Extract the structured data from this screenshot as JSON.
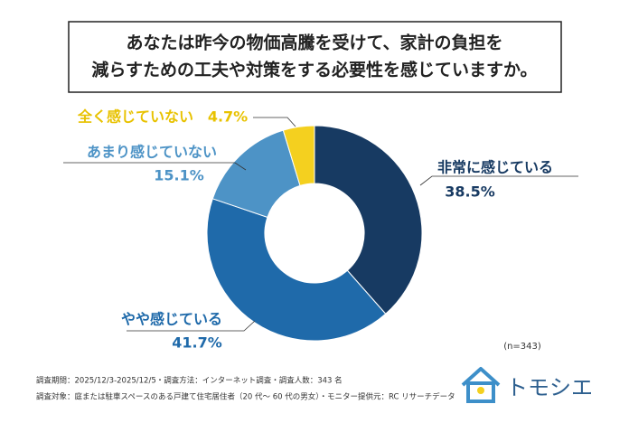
{
  "chart_data": {
    "type": "pie",
    "title": [
      "あなたは昨今の物価高騰を受けて、家計の負担を",
      "減らすための工夫や対策をする必要性を感じていますか。"
    ],
    "categories": [
      "非常に感じている",
      "やや感じている",
      "あまり感じていない",
      "全く感じていない"
    ],
    "values": [
      38.5,
      41.7,
      15.1,
      4.7
    ],
    "value_labels": [
      "38.5%",
      "41.7%",
      "15.1%",
      "4.7%"
    ],
    "colors": [
      "#173a62",
      "#1f6aaa",
      "#4d93c6",
      "#f4d01f"
    ],
    "label_colors": [
      "#173a62",
      "#1f6aaa",
      "#4d93c6",
      "#e8c200"
    ],
    "sample_size": "(n=343)",
    "notes": [
      "調査期間：2025/12/3-2025/12/5・調査方法：インターネット調査・調査人数：343 名",
      "調査対象：庭または駐車スペースのある戸建て住宅居住者（20 代～ 60 代の男女）・モニター提供元：RC リサーチデータ"
    ],
    "brand": "トモシエ"
  }
}
